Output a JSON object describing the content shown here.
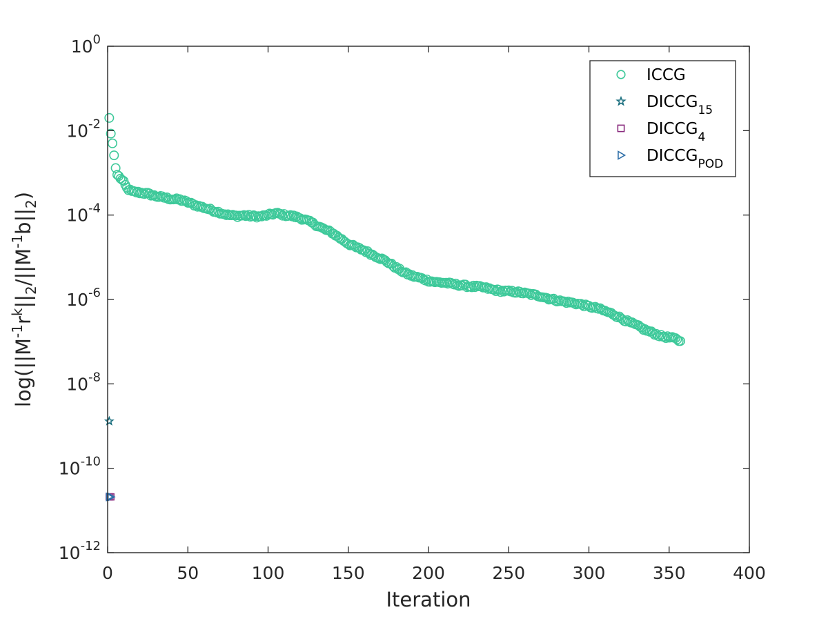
{
  "chart_data": {
    "type": "scatter",
    "title": "",
    "xlabel": "Iteration",
    "ylabel": {
      "parts": [
        {
          "t": "log(||M",
          "s": "n"
        },
        {
          "t": "-1",
          "s": "sup"
        },
        {
          "t": "r",
          "s": "n"
        },
        {
          "t": "k",
          "s": "sup"
        },
        {
          "t": "||",
          "s": "n"
        },
        {
          "t": "2",
          "s": "sub"
        },
        {
          "t": "/||M",
          "s": "n"
        },
        {
          "t": "-1",
          "s": "sup"
        },
        {
          "t": "b||",
          "s": "n"
        },
        {
          "t": "2",
          "s": "sub"
        },
        {
          "t": ")",
          "s": "n"
        }
      ]
    },
    "xlim": [
      0,
      400
    ],
    "ylim": [
      1e-12,
      1
    ],
    "yscale": "log",
    "grid": false,
    "legend_position": "top-right",
    "x_ticks": [
      0,
      50,
      100,
      150,
      200,
      250,
      300,
      350,
      400
    ],
    "x_tick_labels": [
      "0",
      "50",
      "100",
      "150",
      "200",
      "250",
      "300",
      "350",
      "400"
    ],
    "y_ticks": [
      {
        "value": 1.0,
        "base": "10",
        "exp": "0"
      },
      {
        "value": 0.01,
        "base": "10",
        "exp": "-2"
      },
      {
        "value": 0.0001,
        "base": "10",
        "exp": "-4"
      },
      {
        "value": 1e-06,
        "base": "10",
        "exp": "-6"
      },
      {
        "value": 1e-08,
        "base": "10",
        "exp": "-8"
      },
      {
        "value": 1e-10,
        "base": "10",
        "exp": "-10"
      },
      {
        "value": 1e-12,
        "base": "10",
        "exp": "-12"
      }
    ],
    "series": [
      {
        "name": "ICCG",
        "name_sub": "",
        "marker": "circle",
        "color": "#3ec99a",
        "trend": [
          [
            1,
            0.02
          ],
          [
            2,
            0.0085
          ],
          [
            3,
            0.005
          ],
          [
            4,
            0.0026
          ],
          [
            5,
            0.0013
          ],
          [
            6,
            0.0009
          ],
          [
            8,
            0.00075
          ],
          [
            10,
            0.0006
          ],
          [
            12,
            0.00043
          ],
          [
            15,
            0.00036
          ],
          [
            20,
            0.00034
          ],
          [
            25,
            0.00032
          ],
          [
            30,
            0.00028
          ],
          [
            35,
            0.00026
          ],
          [
            40,
            0.00024
          ],
          [
            45,
            0.00023
          ],
          [
            50,
            0.0002
          ],
          [
            55,
            0.00017
          ],
          [
            60,
            0.00015
          ],
          [
            65,
            0.00013
          ],
          [
            70,
            0.000115
          ],
          [
            75,
            0.0001
          ],
          [
            80,
            9.5e-05
          ],
          [
            85,
            9.8e-05
          ],
          [
            90,
            9.4e-05
          ],
          [
            95,
            9.2e-05
          ],
          [
            100,
            0.0001
          ],
          [
            105,
            0.00011
          ],
          [
            110,
            0.0001
          ],
          [
            115,
            9.5e-05
          ],
          [
            120,
            8.5e-05
          ],
          [
            125,
            7.2e-05
          ],
          [
            130,
            5.8e-05
          ],
          [
            135,
            4.6e-05
          ],
          [
            140,
            3.8e-05
          ],
          [
            145,
            2.8e-05
          ],
          [
            150,
            2.1e-05
          ],
          [
            155,
            1.7e-05
          ],
          [
            160,
            1.45e-05
          ],
          [
            165,
            1.15e-05
          ],
          [
            170,
            9.5e-06
          ],
          [
            175,
            7.5e-06
          ],
          [
            180,
            5.6e-06
          ],
          [
            185,
            4.3e-06
          ],
          [
            190,
            3.6e-06
          ],
          [
            195,
            3.2e-06
          ],
          [
            200,
            2.8e-06
          ],
          [
            205,
            2.55e-06
          ],
          [
            210,
            2.5e-06
          ],
          [
            215,
            2.3e-06
          ],
          [
            220,
            2.2e-06
          ],
          [
            225,
            2.05e-06
          ],
          [
            230,
            2e-06
          ],
          [
            235,
            1.9e-06
          ],
          [
            240,
            1.7e-06
          ],
          [
            245,
            1.6e-06
          ],
          [
            250,
            1.55e-06
          ],
          [
            255,
            1.5e-06
          ],
          [
            260,
            1.4e-06
          ],
          [
            265,
            1.3e-06
          ],
          [
            270,
            1.2e-06
          ],
          [
            275,
            1.05e-06
          ],
          [
            280,
            9.5e-07
          ],
          [
            285,
            8.8e-07
          ],
          [
            290,
            8.3e-07
          ],
          [
            295,
            7.6e-07
          ],
          [
            300,
            6.8e-07
          ],
          [
            305,
            6.2e-07
          ],
          [
            310,
            5.3e-07
          ],
          [
            315,
            4.5e-07
          ],
          [
            320,
            3.6e-07
          ],
          [
            325,
            2.9e-07
          ],
          [
            330,
            2.4e-07
          ],
          [
            335,
            1.9e-07
          ],
          [
            340,
            1.6e-07
          ],
          [
            345,
            1.35e-07
          ],
          [
            350,
            1.25e-07
          ],
          [
            355,
            1.15e-07
          ],
          [
            357,
            1e-07
          ]
        ]
      },
      {
        "name": "DICCG",
        "name_sub": "15",
        "marker": "star",
        "color": "#1b6f7f",
        "points": [
          [
            1,
            1.3e-09
          ]
        ]
      },
      {
        "name": "DICCG",
        "name_sub": "4",
        "marker": "square",
        "color": "#8a2c7f",
        "points": [
          [
            1,
            2.1e-11
          ],
          [
            2,
            2.1e-11
          ]
        ]
      },
      {
        "name": "DICCG",
        "name_sub": "POD",
        "marker": "triangle-right",
        "color": "#2f6fa8",
        "points": [
          [
            1,
            2.1e-11
          ],
          [
            2,
            2.1e-11
          ]
        ]
      }
    ]
  }
}
